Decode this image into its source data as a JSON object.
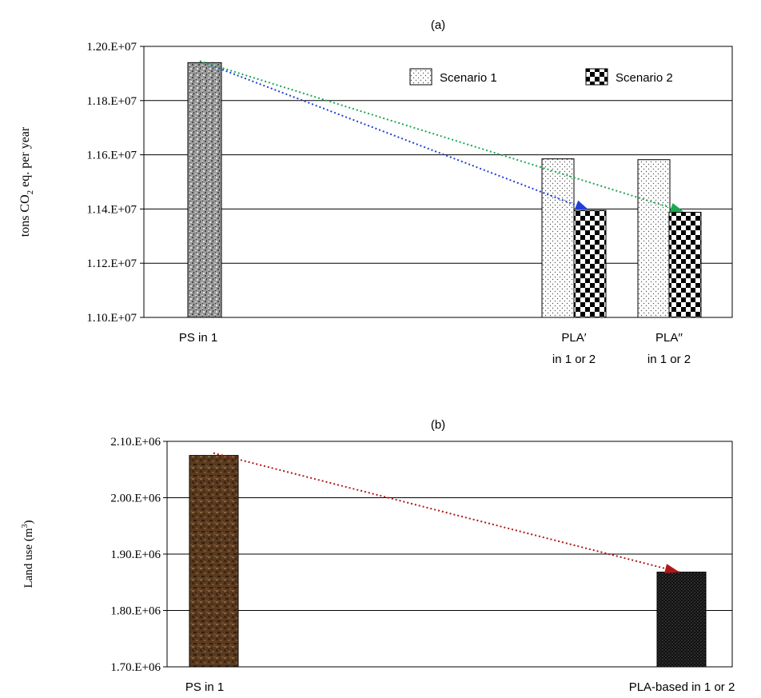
{
  "chart_data": [
    {
      "panel": "(a)",
      "type": "bar",
      "ylabel_parts": [
        "tons CO",
        "2",
        " eq. per year"
      ],
      "ylim": [
        11000000,
        12000000
      ],
      "yticks": [
        11000000,
        11200000,
        11400000,
        11600000,
        11800000,
        12000000
      ],
      "ytick_labels": [
        "1.10.E+07",
        "1.12.E+07",
        "1.14.E+07",
        "1.16.E+07",
        "1.18.E+07",
        "1.20.E+07"
      ],
      "grid": true,
      "legend_position": "top-right",
      "categories": [
        {
          "lines": [
            "PS in 1"
          ]
        },
        {
          "lines": [
            "PLA′",
            "in 1 or 2"
          ]
        },
        {
          "lines": [
            "PLA′′",
            "in 1 or 2"
          ]
        }
      ],
      "bars": [
        {
          "category": 0,
          "series": null,
          "value": 11940000,
          "pattern": "granite"
        },
        {
          "category": 1,
          "series": 0,
          "value": 11585000,
          "pattern": "dots"
        },
        {
          "category": 1,
          "series": 1,
          "value": 11395000,
          "pattern": "checker"
        },
        {
          "category": 2,
          "series": 0,
          "value": 11582000,
          "pattern": "dots"
        },
        {
          "category": 2,
          "series": 1,
          "value": 11388000,
          "pattern": "checker"
        }
      ],
      "series": [
        {
          "name": "Scenario 1",
          "pattern": "dots"
        },
        {
          "name": "Scenario 2",
          "pattern": "checker"
        }
      ],
      "arrows": [
        {
          "from_bar": 0,
          "to_bar": 2,
          "color": "#1f3fd6"
        },
        {
          "from_bar": 0,
          "to_bar": 4,
          "color": "#1aa850"
        }
      ]
    },
    {
      "panel": "(b)",
      "type": "bar",
      "ylabel": "Land use (m",
      "ylabel_sup": "3",
      "ylabel_close": ")",
      "ylim": [
        1700000,
        2100000
      ],
      "yticks": [
        1700000,
        1800000,
        1900000,
        2000000,
        2100000
      ],
      "ytick_labels": [
        "1.70.E+06",
        "1.80.E+06",
        "1.90.E+06",
        "2.00.E+06",
        "2.10.E+06"
      ],
      "grid": true,
      "categories": [
        {
          "lines": [
            "PS in 1"
          ]
        },
        {
          "lines": [
            "PLA-based in 1 or 2"
          ]
        }
      ],
      "bars": [
        {
          "category": 0,
          "series": null,
          "value": 2075000,
          "pattern": "wood"
        },
        {
          "category": 1,
          "series": null,
          "value": 1868000,
          "pattern": "darkdots"
        }
      ],
      "arrows": [
        {
          "from_bar": 0,
          "to_bar": 1,
          "color": "#b01818"
        }
      ]
    }
  ]
}
